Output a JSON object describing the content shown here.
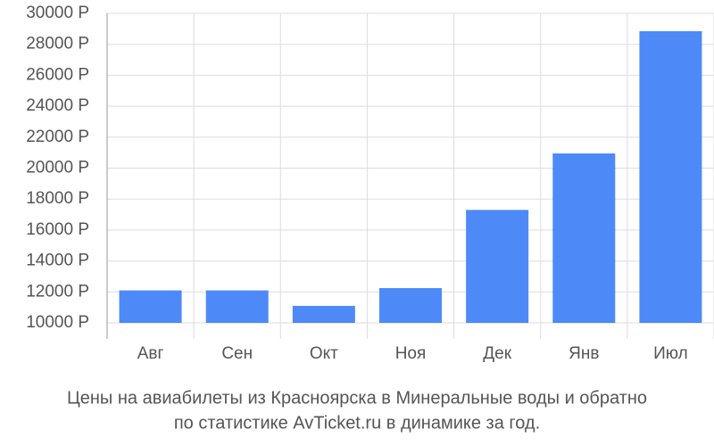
{
  "chart_data": {
    "type": "bar",
    "title": [
      "Цены на авиабилеты из Красноярска в Минеральные воды и обратно",
      "по статистике AvTicket.ru в динамике за год."
    ],
    "categories": [
      "Авг",
      "Сен",
      "Окт",
      "Ноя",
      "Дек",
      "Янв",
      "Июл"
    ],
    "values": [
      12100,
      12100,
      11100,
      12250,
      17300,
      20950,
      28850
    ],
    "color": "#4d8af8",
    "ylim": [
      10000,
      30000
    ],
    "yticks": [
      {
        "value": 10000,
        "label": "10000 Р"
      },
      {
        "value": 12000,
        "label": "12000 Р"
      },
      {
        "value": 14000,
        "label": "14000 Р"
      },
      {
        "value": 16000,
        "label": "16000 Р"
      },
      {
        "value": 18000,
        "label": "18000 Р"
      },
      {
        "value": 20000,
        "label": "20000 Р"
      },
      {
        "value": 22000,
        "label": "22000 Р"
      },
      {
        "value": 24000,
        "label": "24000 Р"
      },
      {
        "value": 26000,
        "label": "26000 Р"
      },
      {
        "value": 28000,
        "label": "28000 Р"
      },
      {
        "value": 30000,
        "label": "30000 Р"
      }
    ],
    "grid": true
  }
}
